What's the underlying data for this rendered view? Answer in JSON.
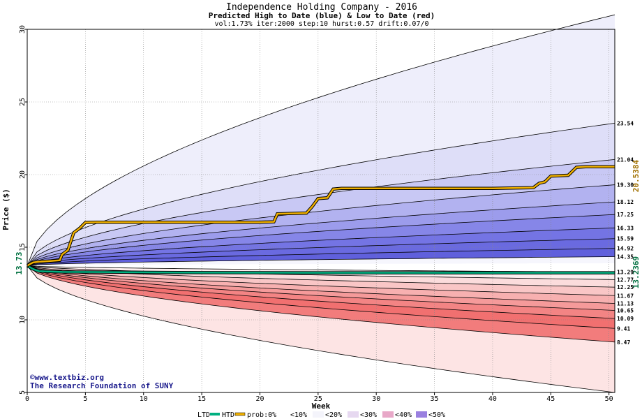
{
  "chart_data": {
    "type": "area",
    "title": "Independence Holding Company - 2016",
    "subtitle": "Predicted High to Date (blue) &  Low to Date (red)",
    "params": "vol:1.73% iter:2000 step:10 hurst:0.57 drift:0.07/0",
    "xlabel": "Week",
    "ylabel": "Price ($)",
    "xlim": [
      0,
      50.5
    ],
    "ylim": [
      5,
      30
    ],
    "x_ticks": [
      0,
      5,
      10,
      15,
      20,
      25,
      30,
      35,
      40,
      45,
      50
    ],
    "y_ticks": [
      5,
      10,
      15,
      20,
      25,
      30
    ],
    "grid": true,
    "start_price": 13.73,
    "start_price_label": "13.73",
    "htd_value_label": "20.5384",
    "ltd_value_label": "13.2369",
    "quantile_labels": [
      "23.54",
      "21.04",
      "19.30",
      "18.12",
      "17.25",
      "16.33",
      "15.59",
      "14.92",
      "14.35",
      "13.29",
      "12.77",
      "12.25",
      "11.67",
      "11.13",
      "10.65",
      "10.09",
      "9.41",
      "8.47"
    ],
    "high_quantiles_end": [
      31.0,
      23.54,
      21.04,
      19.3,
      18.12,
      17.25,
      16.33,
      15.59,
      14.92,
      14.35
    ],
    "low_quantiles_end": [
      13.29,
      12.77,
      12.25,
      11.67,
      11.13,
      10.65,
      10.09,
      9.41,
      8.47,
      5.0
    ],
    "htd_series": {
      "name": "HTD",
      "color": "#f0b000",
      "points": [
        [
          0,
          13.73
        ],
        [
          0.5,
          13.95
        ],
        [
          1,
          14.0
        ],
        [
          2,
          14.05
        ],
        [
          2.8,
          14.1
        ],
        [
          3,
          14.5
        ],
        [
          3.5,
          14.8
        ],
        [
          4,
          16.0
        ],
        [
          4.5,
          16.3
        ],
        [
          5,
          16.7
        ],
        [
          6,
          16.72
        ],
        [
          10,
          16.72
        ],
        [
          15,
          16.72
        ],
        [
          20,
          16.72
        ],
        [
          21.2,
          16.75
        ],
        [
          21.5,
          17.3
        ],
        [
          24,
          17.35
        ],
        [
          24.5,
          17.8
        ],
        [
          25,
          18.35
        ],
        [
          25.8,
          18.4
        ],
        [
          26.3,
          19.0
        ],
        [
          27,
          19.05
        ],
        [
          30,
          19.05
        ],
        [
          35,
          19.05
        ],
        [
          40,
          19.05
        ],
        [
          43.5,
          19.1
        ],
        [
          44,
          19.4
        ],
        [
          44.5,
          19.5
        ],
        [
          45,
          19.9
        ],
        [
          46.5,
          19.95
        ],
        [
          47.2,
          20.5
        ],
        [
          48,
          20.54
        ],
        [
          50.5,
          20.54
        ]
      ]
    },
    "ltd_series": {
      "name": "LTD",
      "color": "#00b080",
      "points": [
        [
          0,
          13.73
        ],
        [
          0.5,
          13.5
        ],
        [
          1,
          13.35
        ],
        [
          3,
          13.3
        ],
        [
          8,
          13.28
        ],
        [
          15,
          13.25
        ],
        [
          25,
          13.24
        ],
        [
          35,
          13.237
        ],
        [
          50.5,
          13.237
        ]
      ]
    },
    "legend": {
      "ltd": "LTD",
      "htd": "HTD",
      "prob": "prob:0%",
      "b10": "<10%",
      "b20": "<20%",
      "b30": "<30%",
      "b40": "<40%",
      "b50": "<50%"
    },
    "colors": {
      "blue_bands": [
        "#eeeefb",
        "#dedef8",
        "#c8c8f4",
        "#b2b2f0",
        "#9c9cec",
        "#8686e8",
        "#7474e4",
        "#6a6ae0",
        "#6060dc",
        "#ececfa"
      ],
      "red_bands": [
        "#fceeee",
        "#fbdcdc",
        "#f9c6c6",
        "#f7b0b0",
        "#f59a9a",
        "#f38484",
        "#f17070",
        "#f27c7c",
        "#fde4e4",
        "#fdf2f2"
      ],
      "legend_swatches": [
        "#ffffff",
        "#f4f4f4",
        "#e8e8f8",
        "#f0d0d0",
        "#e8a8c0",
        "#e87878",
        "#8080e8"
      ]
    }
  },
  "credits": {
    "copyright": "©www.textbiz.org",
    "org": "The Research Foundation of SUNY"
  }
}
